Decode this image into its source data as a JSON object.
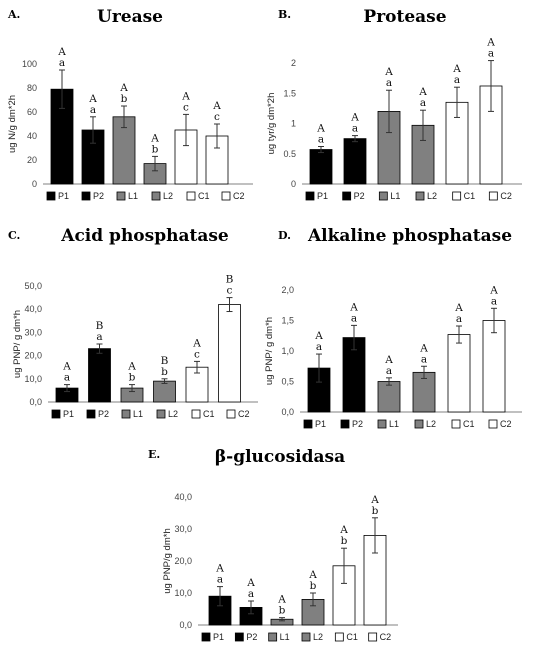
{
  "colors": {
    "P": "#000000",
    "L": "#808080",
    "C": "#ffffff",
    "axis": "#808080",
    "errorbar": "#333333"
  },
  "legend": [
    "P1",
    "P2",
    "L1",
    "L2",
    "C1",
    "C2"
  ],
  "chart_data": [
    {
      "panel": "A.",
      "title": "Urease",
      "type": "bar",
      "ylabel": "ug N/g dm*2h",
      "ylim": [
        0,
        100
      ],
      "yticks": [
        "0",
        "20",
        "40",
        "60",
        "80",
        "100"
      ],
      "categories": [
        "P1",
        "P2",
        "L1",
        "L2",
        "C1",
        "C2"
      ],
      "values": [
        79,
        45,
        56,
        17,
        45,
        40
      ],
      "errors": [
        16,
        11,
        9,
        6,
        13,
        10
      ],
      "letters_upper": [
        "A",
        "A",
        "A",
        "A",
        "A",
        "A"
      ],
      "letters_lower": [
        "a",
        "a",
        "b",
        "b",
        "c",
        "c"
      ]
    },
    {
      "panel": "B.",
      "title": "Protease",
      "type": "bar",
      "ylabel": "ug tyr/g dm*2h",
      "ylim": [
        0,
        2
      ],
      "yticks": [
        "0",
        "0.5",
        "1",
        "1.5",
        "2"
      ],
      "categories": [
        "P1",
        "P2",
        "L1",
        "L2",
        "C1",
        "C2"
      ],
      "values": [
        0.57,
        0.75,
        1.2,
        0.97,
        1.35,
        1.62
      ],
      "errors": [
        0.05,
        0.05,
        0.35,
        0.25,
        0.25,
        0.42
      ],
      "letters_upper": [
        "A",
        "A",
        "A",
        "A",
        "A",
        "A"
      ],
      "letters_lower": [
        "a",
        "a",
        "a",
        "a",
        "a",
        "a"
      ]
    },
    {
      "panel": "C.",
      "title": "Acid phosphatase",
      "type": "bar",
      "ylabel": "ug PNP/ g dm*h",
      "ylim": [
        0,
        50
      ],
      "yticks": [
        "0,0",
        "10,0",
        "20,0",
        "30,0",
        "40,0",
        "50,0"
      ],
      "categories": [
        "P1",
        "P2",
        "L1",
        "L2",
        "C1",
        "C2"
      ],
      "values": [
        6,
        23,
        6,
        9,
        15,
        42
      ],
      "errors": [
        1.5,
        2,
        1.5,
        1,
        2.5,
        3
      ],
      "letters_upper": [
        "A",
        "B",
        "A",
        "B",
        "A",
        "B"
      ],
      "letters_lower": [
        "a",
        "a",
        "b",
        "b",
        "c",
        "c"
      ]
    },
    {
      "panel": "D.",
      "title": "Alkaline phosphatase",
      "type": "bar",
      "ylabel": "ug PNP/ g dm*h",
      "ylim": [
        0,
        2
      ],
      "yticks": [
        "0,0",
        "0,5",
        "1,0",
        "1,5",
        "2,0"
      ],
      "categories": [
        "P1",
        "P2",
        "L1",
        "L2",
        "C1",
        "C2"
      ],
      "values": [
        0.72,
        1.22,
        0.5,
        0.65,
        1.27,
        1.5
      ],
      "errors": [
        0.23,
        0.2,
        0.06,
        0.1,
        0.14,
        0.2
      ],
      "letters_upper": [
        "A",
        "A",
        "A",
        "A",
        "A",
        "A"
      ],
      "letters_lower": [
        "a",
        "a",
        "a",
        "a",
        "a",
        "a"
      ]
    },
    {
      "panel": "E.",
      "title": "β-glucosidasa",
      "type": "bar",
      "ylabel": "ug PNP/g dm*h",
      "ylim": [
        0,
        40
      ],
      "yticks": [
        "0,0",
        "10,0",
        "20,0",
        "30,0",
        "40,0"
      ],
      "categories": [
        "P1",
        "P2",
        "L1",
        "L2",
        "C1",
        "C2"
      ],
      "values": [
        9,
        5.5,
        1.8,
        8,
        18.5,
        28
      ],
      "errors": [
        3,
        2,
        0.5,
        2,
        5.5,
        5.5
      ],
      "letters_upper": [
        "A",
        "A",
        "A",
        "A",
        "A",
        "A"
      ],
      "letters_lower": [
        "a",
        "a",
        "b",
        "b",
        "b",
        "b"
      ]
    }
  ]
}
